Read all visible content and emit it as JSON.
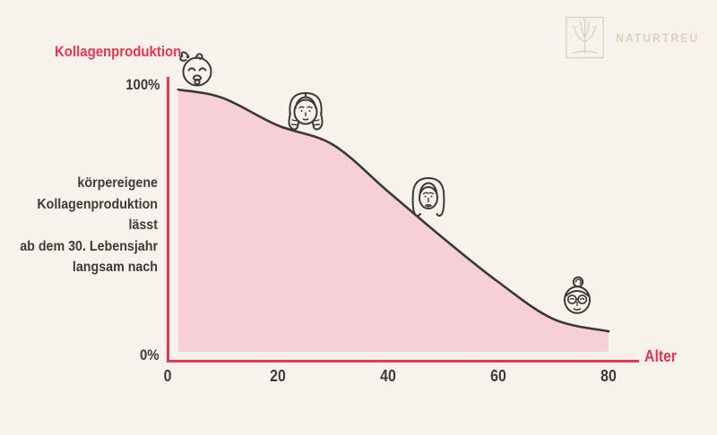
{
  "page": {
    "background": "#f7f2ec"
  },
  "logo": {
    "brand": "NATURTREU",
    "color": "#dcd3bc",
    "icon": "tree-in-frame"
  },
  "chart_data": {
    "type": "area",
    "title": "Kollagenproduktion",
    "xlabel": "Alter",
    "ylabel_top": "100%",
    "ylabel_bottom": "0%",
    "x_ticks": [
      0,
      20,
      40,
      60,
      80
    ],
    "x": [
      2,
      10,
      20,
      30,
      40,
      50,
      60,
      70,
      80
    ],
    "values": [
      99,
      96,
      86,
      79,
      62,
      45,
      29,
      15.5,
      11
    ],
    "series_name": "körpereigene Kollagenproduktion (%)",
    "xlim": [
      0,
      85
    ],
    "ylim": [
      0,
      100
    ],
    "grid": false,
    "legend": "none",
    "annotation": "körpereigene Kollagenproduktion lässt ab dem 30. Lebensjahr langsam nach",
    "annotation_lines": [
      "körpereigene",
      "Kollagenproduktion lässt",
      "ab dem 30. Lebensjahr",
      "langsam nach"
    ],
    "axis_color": "#e8344f",
    "line_color": "#3b3836",
    "fill_color": "#f6cfd7",
    "text_color": "#3d3a38",
    "markers": [
      {
        "icon": "baby-face",
        "approx_age": 5
      },
      {
        "icon": "young-girl-face",
        "approx_age": 25
      },
      {
        "icon": "adult-woman-face",
        "approx_age": 47
      },
      {
        "icon": "senior-woman-face",
        "approx_age": 74
      }
    ]
  }
}
